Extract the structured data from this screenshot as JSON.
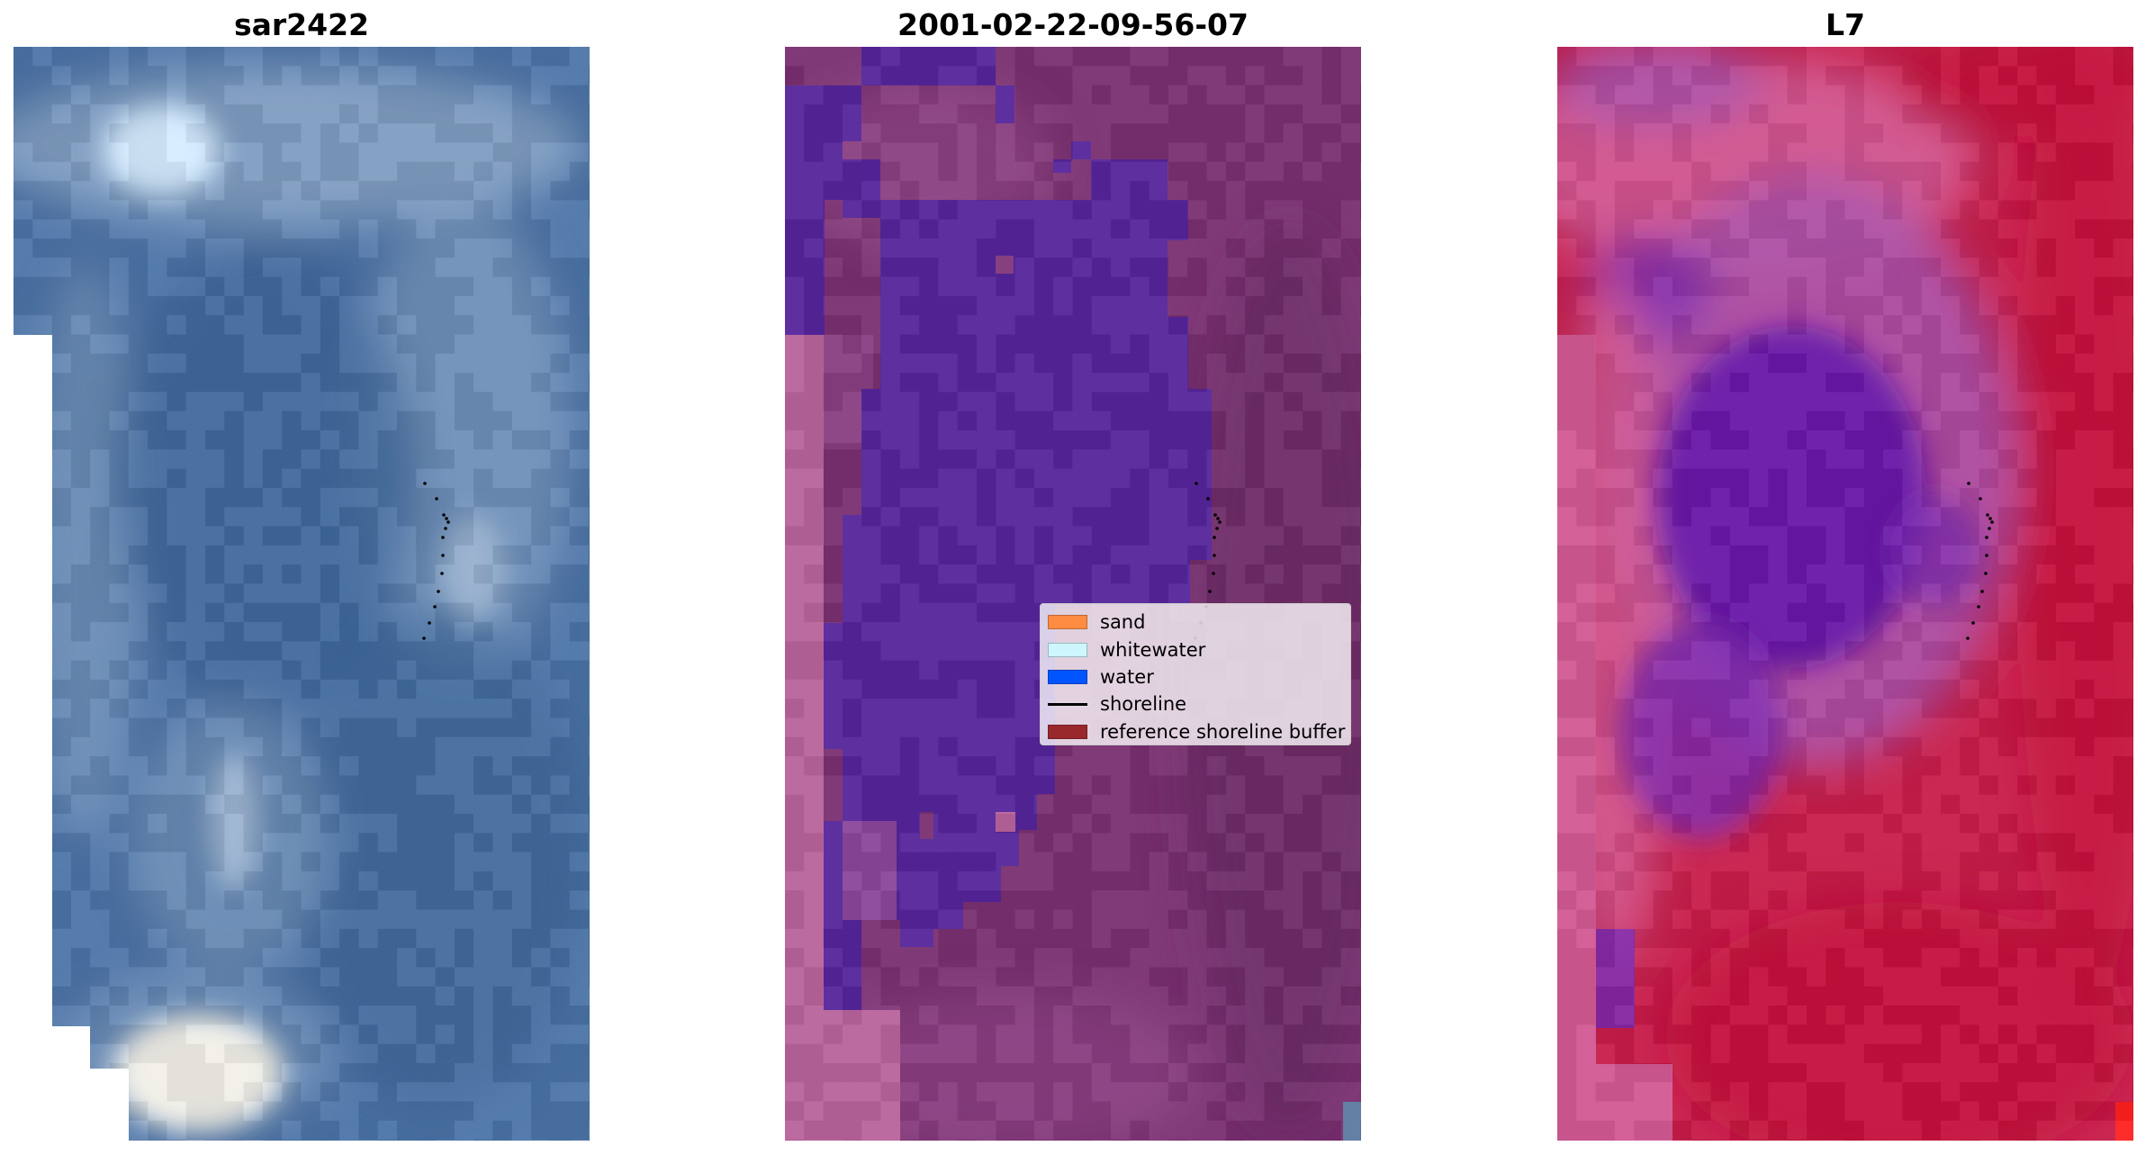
{
  "panels": [
    {
      "title": "sar2422",
      "kind": "rgb-image",
      "colors": {
        "base": "#4c74a8",
        "deep": "#3b6598",
        "light": "#7a98bd",
        "bright": "#d6ecff",
        "haze": "#a8bdd6",
        "whitecap": "#f2f0e8"
      }
    },
    {
      "title": "2001-02-22-09-56-07",
      "kind": "classified-image",
      "colors": {
        "base": "#7a3070",
        "deep": "#6a2a66",
        "pink": "#b8649a",
        "mauve": "#8e4486",
        "water_class": "#56259a",
        "edge": "#5a7aa0"
      }
    },
    {
      "title": "L7",
      "kind": "index-image",
      "colors": {
        "base": "#c81e4a",
        "deep": "#c4083a",
        "pink": "#d25a94",
        "violet": "#7a28b0",
        "purple": "#a850a8",
        "indigo": "#5c10a8",
        "corner": "#ff2020"
      }
    }
  ],
  "shoreline_color": "#000000",
  "legend": {
    "items": [
      {
        "label": "sand",
        "color": "#ff8c42",
        "type": "patch",
        "icon": "sand-swatch"
      },
      {
        "label": "whitewater",
        "color": "#cdf6ff",
        "type": "patch",
        "icon": "whitewater-swatch"
      },
      {
        "label": "water",
        "color": "#0055ff",
        "type": "patch",
        "icon": "water-swatch"
      },
      {
        "label": "shoreline",
        "color": "#000000",
        "type": "line",
        "icon": "shoreline-line"
      },
      {
        "label": "reference shoreline buffer",
        "color": "#99282c",
        "type": "patch",
        "icon": "buffer-swatch"
      }
    ]
  }
}
